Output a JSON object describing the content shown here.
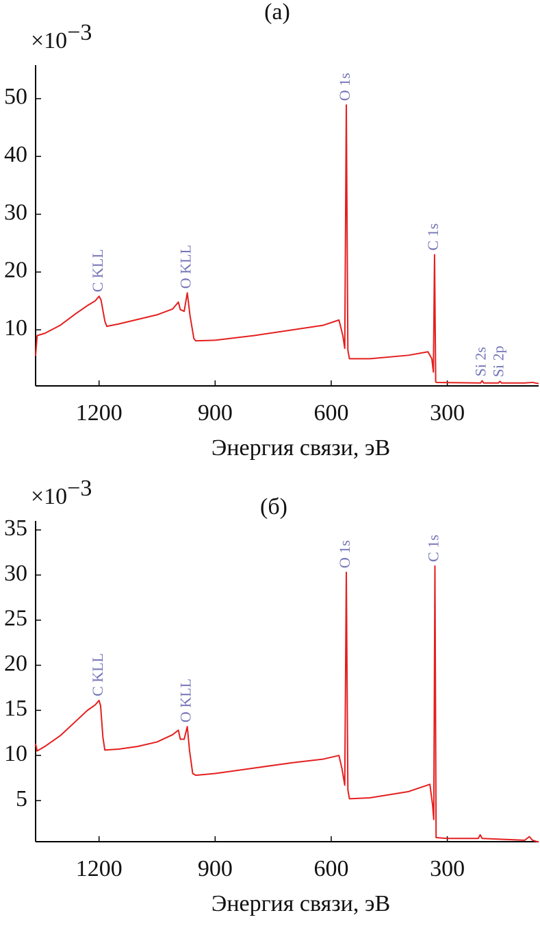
{
  "chart_data": [
    {
      "type": "line",
      "title": "(a)",
      "y_multiplier": {
        "base": "×10",
        "exponent": "−3"
      },
      "x_label": "Энергия связи, эВ",
      "color": "#e41f1f",
      "xlim": [
        1364,
        64
      ],
      "xticks": [
        1200,
        900,
        600,
        300
      ],
      "ylim": [
        0.3,
        55.8
      ],
      "yticks": [
        10,
        20,
        30,
        40,
        50
      ],
      "x": [
        1364,
        1360,
        1340,
        1300,
        1260,
        1230,
        1210,
        1200,
        1195,
        1185,
        1180,
        1150,
        1100,
        1050,
        1010,
        995,
        990,
        980,
        972,
        965,
        955,
        950,
        900,
        800,
        700,
        620,
        580,
        570,
        565,
        561,
        557,
        553,
        500,
        400,
        350,
        340,
        336,
        333,
        330,
        328,
        214,
        210,
        206,
        168,
        164,
        160,
        100,
        80,
        64
      ],
      "values": [
        5.5,
        9.0,
        9.4,
        10.8,
        12.8,
        14.2,
        15.0,
        15.8,
        15.2,
        11.5,
        10.6,
        11.0,
        11.8,
        12.6,
        13.6,
        14.8,
        13.5,
        13.2,
        16.4,
        12.5,
        8.5,
        8.1,
        8.2,
        9.0,
        10.0,
        10.8,
        11.7,
        9.0,
        6.8,
        48.9,
        6.5,
        5.0,
        5.0,
        5.6,
        6.2,
        5.0,
        2.7,
        23.0,
        1.0,
        0.9,
        0.8,
        1.2,
        0.8,
        0.8,
        1.1,
        0.8,
        0.8,
        0.9,
        0.7
      ],
      "annotations": [
        {
          "text": "C KLL",
          "x": 1200
        },
        {
          "text": "O KLL",
          "x": 972
        },
        {
          "text": "O 1s",
          "x": 561
        },
        {
          "text": "C 1s",
          "x": 333
        },
        {
          "text": "Si 2s",
          "x": 210
        },
        {
          "text": "Si 2p",
          "x": 164
        }
      ]
    },
    {
      "type": "line",
      "title": "(б)",
      "y_multiplier": {
        "base": "×10",
        "exponent": "−3"
      },
      "x_label": "Энергия связи, эВ",
      "color": "#e41f1f",
      "xlim": [
        1364,
        64
      ],
      "xticks": [
        1200,
        900,
        600,
        300
      ],
      "ylim": [
        0.44,
        36
      ],
      "yticks": [
        5,
        10,
        15,
        20,
        25,
        30,
        35
      ],
      "x": [
        1364,
        1360,
        1340,
        1300,
        1260,
        1230,
        1210,
        1200,
        1196,
        1190,
        1185,
        1150,
        1100,
        1050,
        1010,
        995,
        990,
        980,
        972,
        966,
        958,
        950,
        900,
        800,
        700,
        620,
        580,
        572,
        565,
        561,
        557,
        553,
        500,
        400,
        345,
        338,
        335,
        332,
        329,
        300,
        220,
        215,
        210,
        100,
        88,
        80,
        64
      ],
      "values": [
        11.3,
        10.5,
        11.0,
        12.2,
        13.8,
        15.0,
        15.6,
        16.1,
        15.5,
        12.0,
        10.6,
        10.7,
        11.0,
        11.5,
        12.3,
        12.8,
        11.8,
        11.8,
        13.2,
        10.5,
        8.0,
        7.8,
        8.0,
        8.6,
        9.2,
        9.6,
        10.0,
        8.5,
        6.7,
        30.3,
        6.2,
        5.2,
        5.3,
        6.0,
        6.8,
        4.5,
        2.9,
        31.0,
        0.9,
        0.8,
        0.8,
        1.2,
        0.8,
        0.6,
        1.0,
        0.6,
        0.4
      ],
      "annotations": [
        {
          "text": "C KLL",
          "x": 1200
        },
        {
          "text": "O KLL",
          "x": 972
        },
        {
          "text": "O 1s",
          "x": 561
        },
        {
          "text": "C 1s",
          "x": 332
        }
      ]
    }
  ]
}
